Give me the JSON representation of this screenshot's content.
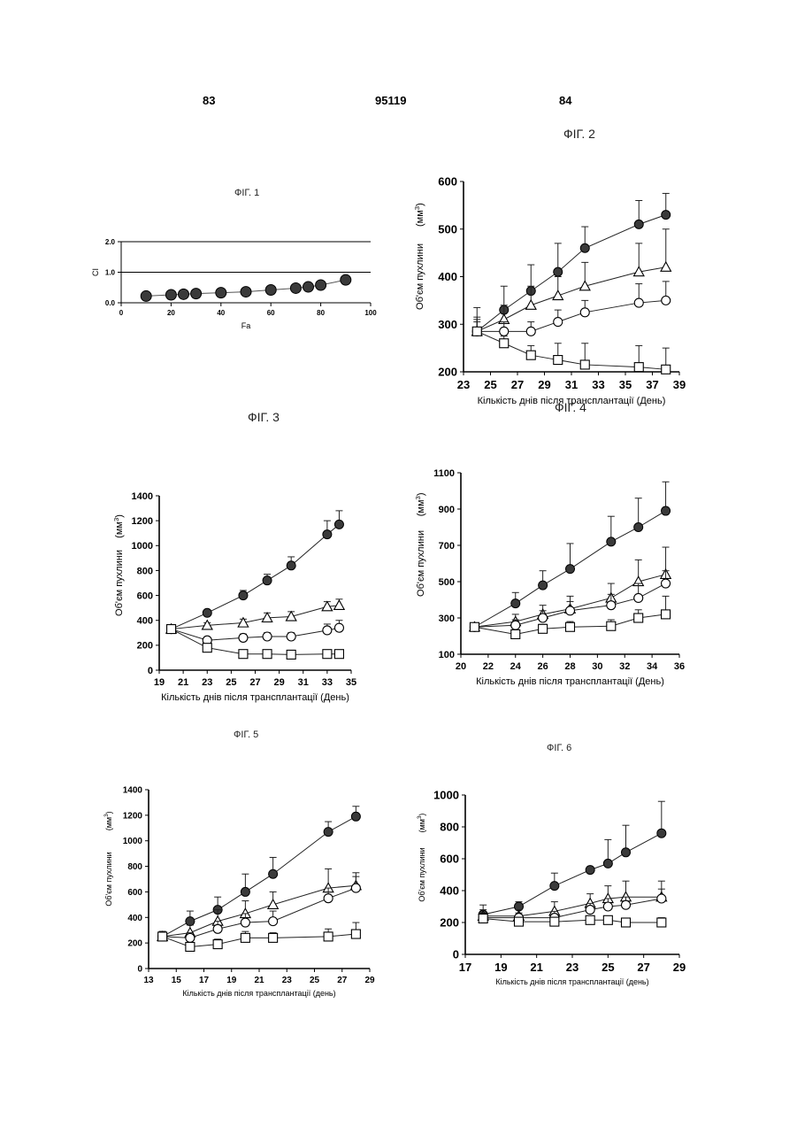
{
  "header": {
    "left_page": "83",
    "patent_number": "95119",
    "right_page": "84"
  },
  "chart_data": [
    {
      "type": "scatter",
      "title": "ФІГ. 1",
      "xlabel": "Fa",
      "ylabel": "CI",
      "xticks": [
        "0",
        "20",
        "40",
        "60",
        "80",
        "100"
      ],
      "yticks": [
        "0.0",
        "1.0",
        "2.0"
      ],
      "xlim": [
        0,
        100
      ],
      "ylim": [
        0,
        2
      ],
      "reference_lines": [
        1.0,
        2.0
      ],
      "series": [
        {
          "marker": "filled-circle",
          "x": [
            10,
            20,
            25,
            30,
            40,
            50,
            60,
            70,
            75,
            80,
            90
          ],
          "y": [
            0.22,
            0.26,
            0.28,
            0.3,
            0.33,
            0.36,
            0.42,
            0.48,
            0.52,
            0.58,
            0.75
          ]
        }
      ]
    },
    {
      "type": "line",
      "title": "ФІГ. 2",
      "xlabel": "Кількість днів після трансплантації (День)",
      "ylabel": "Об'єм пухлини",
      "yunit_base": "(мм",
      "yunit_exp": "3",
      "yunit_close": ")",
      "xticks": [
        "23",
        "25",
        "27",
        "29",
        "31",
        "33",
        "35",
        "37",
        "39"
      ],
      "yticks": [
        "200",
        "300",
        "400",
        "500",
        "600"
      ],
      "xlim": [
        23,
        39
      ],
      "ylim": [
        200,
        600
      ],
      "series": [
        {
          "marker": "filled-circle",
          "x": [
            24,
            26,
            28,
            30,
            32,
            36,
            38
          ],
          "y": [
            285,
            330,
            370,
            410,
            460,
            510,
            530
          ],
          "err": [
            50,
            50,
            55,
            60,
            45,
            50,
            45
          ]
        },
        {
          "marker": "open-triangle",
          "x": [
            24,
            26,
            28,
            30,
            32,
            36,
            38
          ],
          "y": [
            285,
            310,
            340,
            360,
            380,
            410,
            420
          ],
          "err": [
            30,
            30,
            40,
            40,
            50,
            60,
            80
          ]
        },
        {
          "marker": "open-circle",
          "x": [
            24,
            26,
            28,
            30,
            32,
            36,
            38
          ],
          "y": [
            285,
            285,
            285,
            305,
            325,
            345,
            350
          ],
          "err": [
            25,
            20,
            20,
            25,
            25,
            40,
            40
          ]
        },
        {
          "marker": "open-square",
          "x": [
            24,
            26,
            28,
            30,
            32,
            36,
            38
          ],
          "y": [
            285,
            260,
            235,
            225,
            215,
            210,
            205
          ],
          "err": [
            20,
            15,
            20,
            35,
            45,
            45,
            45
          ]
        }
      ]
    },
    {
      "type": "line",
      "title": "ФІГ. 3",
      "xlabel": "Кількість днів після трансплантації  (День)",
      "ylabel": "Об'єм пухлини",
      "yunit_base": "(мм",
      "yunit_exp": "3",
      "yunit_close": ")",
      "xticks": [
        "19",
        "21",
        "23",
        "25",
        "27",
        "29",
        "31",
        "33",
        "35"
      ],
      "yticks": [
        "0",
        "200",
        "400",
        "600",
        "800",
        "1000",
        "1200",
        "1400"
      ],
      "xlim": [
        19,
        35
      ],
      "ylim": [
        0,
        1400
      ],
      "series": [
        {
          "marker": "filled-circle",
          "x": [
            20,
            23,
            26,
            28,
            30,
            33,
            34
          ],
          "y": [
            330,
            460,
            600,
            720,
            840,
            1090,
            1170
          ],
          "err": [
            0,
            20,
            40,
            50,
            70,
            110,
            110
          ]
        },
        {
          "marker": "open-triangle",
          "x": [
            20,
            23,
            26,
            28,
            30,
            33,
            34
          ],
          "y": [
            330,
            360,
            380,
            420,
            430,
            510,
            520
          ],
          "err": [
            0,
            20,
            30,
            40,
            40,
            40,
            50
          ]
        },
        {
          "marker": "open-circle",
          "x": [
            20,
            23,
            26,
            28,
            30,
            33,
            34
          ],
          "y": [
            330,
            240,
            260,
            270,
            270,
            320,
            340
          ],
          "err": [
            0,
            20,
            30,
            30,
            30,
            50,
            60
          ]
        },
        {
          "marker": "open-square",
          "x": [
            20,
            23,
            26,
            28,
            30,
            33,
            34
          ],
          "y": [
            330,
            180,
            130,
            130,
            125,
            130,
            130
          ],
          "err": [
            0,
            10,
            10,
            10,
            10,
            10,
            10
          ]
        }
      ]
    },
    {
      "type": "line",
      "title": "ФІГ. 4",
      "xlabel": "Кількість днів після трансплантації  (День)",
      "ylabel": "Об'єм пухлини",
      "yunit_base": "(мм",
      "yunit_exp": "3",
      "yunit_close": ")",
      "xticks": [
        "20",
        "22",
        "24",
        "26",
        "28",
        "30",
        "32",
        "34",
        "36"
      ],
      "yticks": [
        "100",
        "300",
        "500",
        "700",
        "900",
        "1100"
      ],
      "xlim": [
        20,
        36
      ],
      "ylim": [
        100,
        1100
      ],
      "series": [
        {
          "marker": "filled-circle",
          "x": [
            21,
            24,
            26,
            28,
            31,
            33,
            35
          ],
          "y": [
            250,
            380,
            480,
            570,
            720,
            800,
            890
          ],
          "err": [
            20,
            60,
            80,
            140,
            140,
            160,
            160
          ]
        },
        {
          "marker": "open-triangle",
          "x": [
            21,
            24,
            26,
            28,
            31,
            33,
            35
          ],
          "y": [
            250,
            280,
            320,
            350,
            410,
            500,
            540
          ],
          "err": [
            20,
            40,
            50,
            70,
            80,
            120,
            150
          ]
        },
        {
          "marker": "open-circle",
          "x": [
            21,
            24,
            26,
            28,
            31,
            33,
            35
          ],
          "y": [
            250,
            260,
            300,
            340,
            370,
            410,
            490
          ],
          "err": [
            20,
            30,
            40,
            50,
            60,
            80,
            70
          ]
        },
        {
          "marker": "open-square",
          "x": [
            21,
            24,
            26,
            28,
            31,
            33,
            35
          ],
          "y": [
            250,
            210,
            240,
            250,
            255,
            300,
            320
          ],
          "err": [
            20,
            25,
            25,
            30,
            35,
            45,
            100
          ]
        }
      ]
    },
    {
      "type": "line",
      "title": "ФІГ. 5",
      "xlabel": "Кількість днів після трансплантації (день)",
      "ylabel": "Об'єм пухлини",
      "yunit_base": "(мм",
      "yunit_exp": "3",
      "yunit_close": ")",
      "xticks": [
        "13",
        "15",
        "17",
        "19",
        "21",
        "23",
        "25",
        "27",
        "29"
      ],
      "yticks": [
        "0",
        "200",
        "400",
        "600",
        "800",
        "1000",
        "1200",
        "1400"
      ],
      "xlim": [
        13,
        29
      ],
      "ylim": [
        0,
        1400
      ],
      "series": [
        {
          "marker": "filled-circle",
          "x": [
            14,
            16,
            18,
            20,
            22,
            26,
            28
          ],
          "y": [
            250,
            370,
            460,
            600,
            740,
            1070,
            1190
          ],
          "err": [
            40,
            80,
            100,
            140,
            130,
            80,
            80
          ]
        },
        {
          "marker": "open-triangle",
          "x": [
            14,
            16,
            18,
            20,
            22,
            26,
            28
          ],
          "y": [
            250,
            280,
            370,
            430,
            500,
            630,
            650
          ],
          "err": [
            40,
            60,
            90,
            100,
            100,
            150,
            100
          ]
        },
        {
          "marker": "open-circle",
          "x": [
            14,
            16,
            18,
            20,
            22,
            26,
            28
          ],
          "y": [
            250,
            240,
            310,
            360,
            370,
            550,
            630
          ],
          "err": [
            40,
            40,
            60,
            70,
            80,
            80,
            90
          ]
        },
        {
          "marker": "open-square",
          "x": [
            14,
            16,
            18,
            20,
            22,
            26,
            28
          ],
          "y": [
            250,
            170,
            190,
            240,
            240,
            250,
            270
          ],
          "err": [
            30,
            30,
            40,
            50,
            40,
            60,
            90
          ]
        }
      ]
    },
    {
      "type": "line",
      "title": "ФІГ. 6",
      "xlabel": "Кількість днів після трансплантації (день)",
      "ylabel": "Об'єм пухлини",
      "yunit_base": "(мм",
      "yunit_exp": "3",
      "yunit_close": ")",
      "xticks": [
        "17",
        "19",
        "21",
        "23",
        "25",
        "27",
        "29"
      ],
      "yticks": [
        "0",
        "200",
        "400",
        "600",
        "800",
        "1000"
      ],
      "xlim": [
        17,
        29
      ],
      "ylim": [
        0,
        1000
      ],
      "series": [
        {
          "marker": "filled-circle",
          "x": [
            18,
            20,
            22,
            24,
            25,
            26,
            28
          ],
          "y": [
            250,
            300,
            430,
            530,
            570,
            640,
            760
          ],
          "err": [
            60,
            30,
            80,
            20,
            150,
            170,
            200
          ]
        },
        {
          "marker": "open-triangle",
          "x": [
            18,
            20,
            22,
            24,
            25,
            26,
            28
          ],
          "y": [
            240,
            240,
            270,
            320,
            350,
            360,
            360
          ],
          "err": [
            40,
            40,
            60,
            60,
            80,
            100,
            100
          ]
        },
        {
          "marker": "open-circle",
          "x": [
            18,
            20,
            22,
            24,
            25,
            26,
            28
          ],
          "y": [
            230,
            230,
            230,
            280,
            300,
            310,
            350
          ],
          "err": [
            30,
            30,
            40,
            40,
            50,
            50,
            60
          ]
        },
        {
          "marker": "open-square",
          "x": [
            18,
            20,
            22,
            24,
            25,
            26,
            28
          ],
          "y": [
            225,
            205,
            205,
            215,
            215,
            200,
            200
          ],
          "err": [
            20,
            20,
            20,
            20,
            20,
            20,
            30
          ]
        }
      ]
    }
  ]
}
